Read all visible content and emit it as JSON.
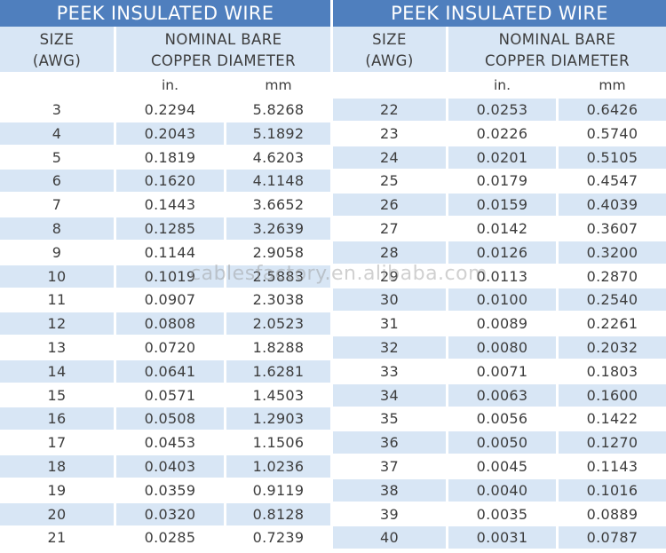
{
  "colors": {
    "header_blue": "#4f7fbe",
    "row_shade": "#d8e6f5",
    "text": "#3d3d3d"
  },
  "watermark": "cablesfactory.en.alibaba.com",
  "left_table": {
    "title": "PEEK INSULATED WIRE",
    "size_header": [
      "SIZE",
      "(AWG)"
    ],
    "diameter_header": [
      "NOMINAL BARE",
      "COPPER DIAMETER"
    ],
    "unit_in": "in.",
    "unit_mm": "mm",
    "rows": [
      {
        "awg": "3",
        "in": "0.2294",
        "mm": "5.8268"
      },
      {
        "awg": "4",
        "in": "0.2043",
        "mm": "5.1892"
      },
      {
        "awg": "5",
        "in": "0.1819",
        "mm": "4.6203"
      },
      {
        "awg": "6",
        "in": "0.1620",
        "mm": "4.1148"
      },
      {
        "awg": "7",
        "in": "0.1443",
        "mm": "3.6652"
      },
      {
        "awg": "8",
        "in": "0.1285",
        "mm": "3.2639"
      },
      {
        "awg": "9",
        "in": "0.1144",
        "mm": "2.9058"
      },
      {
        "awg": "10",
        "in": "0.1019",
        "mm": "2.5883"
      },
      {
        "awg": "11",
        "in": "0.0907",
        "mm": "2.3038"
      },
      {
        "awg": "12",
        "in": "0.0808",
        "mm": "2.0523"
      },
      {
        "awg": "13",
        "in": "0.0720",
        "mm": "1.8288"
      },
      {
        "awg": "14",
        "in": "0.0641",
        "mm": "1.6281"
      },
      {
        "awg": "15",
        "in": "0.0571",
        "mm": "1.4503"
      },
      {
        "awg": "16",
        "in": "0.0508",
        "mm": "1.2903"
      },
      {
        "awg": "17",
        "in": "0.0453",
        "mm": "1.1506"
      },
      {
        "awg": "18",
        "in": "0.0403",
        "mm": "1.0236"
      },
      {
        "awg": "19",
        "in": "0.0359",
        "mm": "0.9119"
      },
      {
        "awg": "20",
        "in": "0.0320",
        "mm": "0.8128"
      },
      {
        "awg": "21",
        "in": "0.0285",
        "mm": "0.7239"
      }
    ]
  },
  "right_table": {
    "title": "PEEK INSULATED WIRE",
    "size_header": [
      "SIZE",
      "(AWG)"
    ],
    "diameter_header": [
      "NOMINAL BARE",
      "COPPER DIAMETER"
    ],
    "unit_in": "in.",
    "unit_mm": "mm",
    "rows": [
      {
        "awg": "22",
        "in": "0.0253",
        "mm": "0.6426"
      },
      {
        "awg": "23",
        "in": "0.0226",
        "mm": "0.5740"
      },
      {
        "awg": "24",
        "in": "0.0201",
        "mm": "0.5105"
      },
      {
        "awg": "25",
        "in": "0.0179",
        "mm": "0.4547"
      },
      {
        "awg": "26",
        "in": "0.0159",
        "mm": "0.4039"
      },
      {
        "awg": "27",
        "in": "0.0142",
        "mm": "0.3607"
      },
      {
        "awg": "28",
        "in": "0.0126",
        "mm": "0.3200"
      },
      {
        "awg": "29",
        "in": "0.0113",
        "mm": "0.2870"
      },
      {
        "awg": "30",
        "in": "0.0100",
        "mm": "0.2540"
      },
      {
        "awg": "31",
        "in": "0.0089",
        "mm": "0.2261"
      },
      {
        "awg": "32",
        "in": "0.0080",
        "mm": "0.2032"
      },
      {
        "awg": "33",
        "in": "0.0071",
        "mm": "0.1803"
      },
      {
        "awg": "34",
        "in": "0.0063",
        "mm": "0.1600"
      },
      {
        "awg": "35",
        "in": "0.0056",
        "mm": "0.1422"
      },
      {
        "awg": "36",
        "in": "0.0050",
        "mm": "0.1270"
      },
      {
        "awg": "37",
        "in": "0.0045",
        "mm": "0.1143"
      },
      {
        "awg": "38",
        "in": "0.0040",
        "mm": "0.1016"
      },
      {
        "awg": "39",
        "in": "0.0035",
        "mm": "0.0889"
      },
      {
        "awg": "40",
        "in": "0.0031",
        "mm": "0.0787"
      }
    ]
  }
}
